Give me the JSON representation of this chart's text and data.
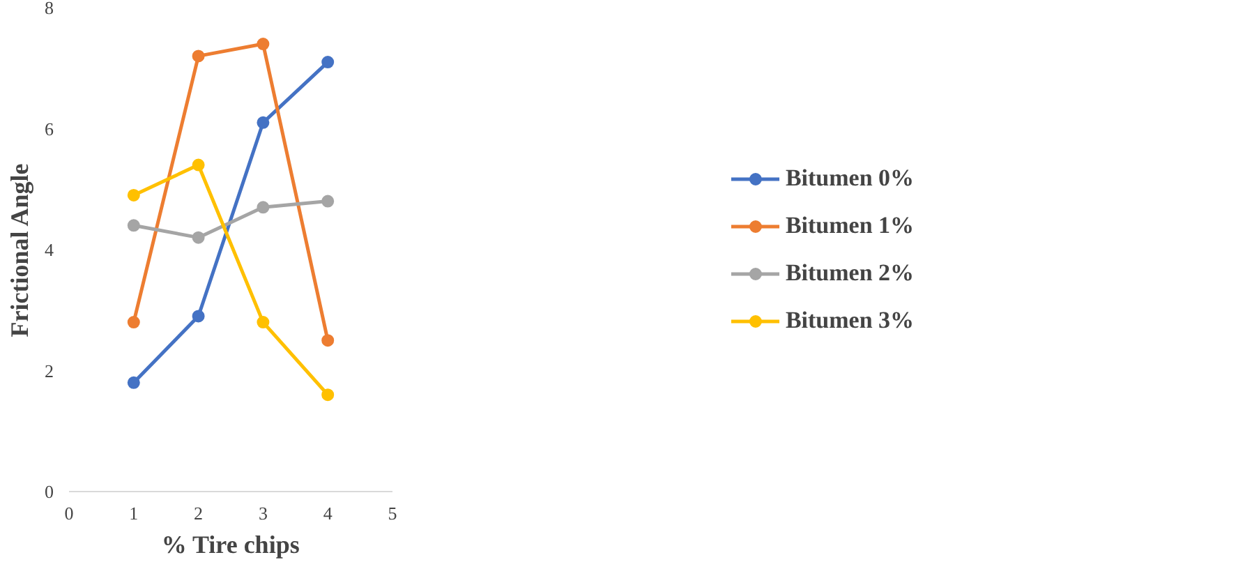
{
  "chart_data": {
    "type": "line",
    "xlabel": "% Tire chips",
    "ylabel": "Frictional Angle",
    "x": [
      1,
      2,
      3,
      4
    ],
    "series": [
      {
        "name": "Bitumen 0%",
        "color": "#4472c4",
        "values": [
          1.8,
          2.9,
          6.1,
          7.1
        ]
      },
      {
        "name": "Bitumen 1%",
        "color": "#ed7d31",
        "values": [
          2.8,
          7.2,
          7.4,
          2.5
        ]
      },
      {
        "name": "Bitumen 2%",
        "color": "#a5a5a5",
        "values": [
          4.4,
          4.2,
          4.7,
          4.8
        ]
      },
      {
        "name": "Bitumen 3%",
        "color": "#ffc000",
        "values": [
          4.9,
          5.4,
          2.8,
          1.6
        ]
      }
    ],
    "xlim": [
      0,
      5
    ],
    "xticks": [
      0,
      1,
      2,
      3,
      4,
      5
    ],
    "ylim": [
      0,
      8
    ],
    "yticks": [
      0,
      2,
      4,
      6,
      8
    ],
    "grid": false,
    "legend": "right",
    "marker": "circle",
    "line_style": "solid"
  }
}
